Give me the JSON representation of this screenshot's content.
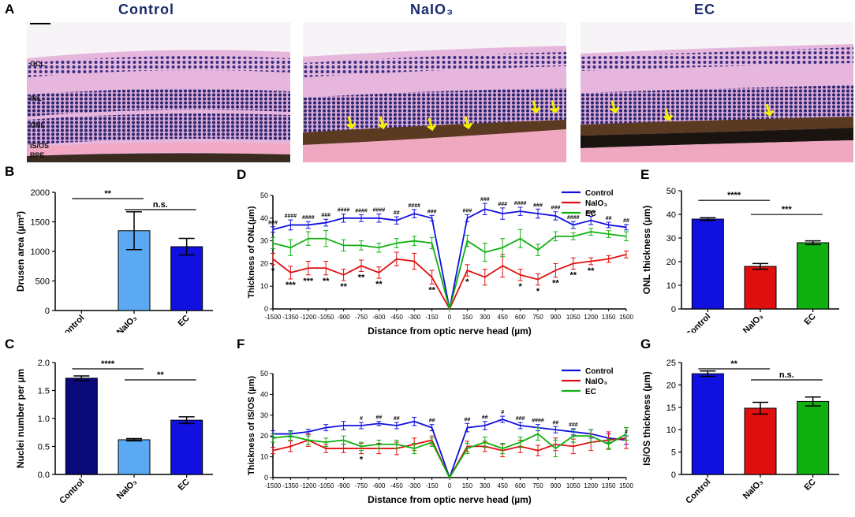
{
  "panel_letters": {
    "A": "A",
    "B": "B",
    "C": "C",
    "D": "D",
    "E": "E",
    "F": "F",
    "G": "G"
  },
  "panel_A": {
    "titles": [
      "Control",
      "NaIO₃",
      "EC"
    ],
    "layers": [
      "GCL",
      "INL",
      "ONL",
      "IS/OS",
      "RPE"
    ]
  },
  "colors": {
    "control": "#1010e0",
    "naio3": "#e01010",
    "ec": "#10b010",
    "control_dark": "#0a0a7a",
    "naio3_light": "#5aa9f2",
    "arrow": "#f5f000"
  },
  "chart_data": [
    {
      "id": "B",
      "type": "bar",
      "ylabel": "Drusen area (µm²)",
      "categories": [
        "Control",
        "NaIO₃",
        "EC"
      ],
      "values": [
        0,
        1350,
        1080
      ],
      "errors": [
        0,
        320,
        140
      ],
      "ylim": [
        0,
        2000
      ],
      "yticks": [
        0,
        500,
        1000,
        1500,
        2000
      ],
      "significance": [
        {
          "from": 0,
          "to": 1,
          "label": "**"
        },
        {
          "from": 1,
          "to": 2,
          "label": "n.s."
        }
      ]
    },
    {
      "id": "C",
      "type": "bar",
      "ylabel": "Nuclei number per µm",
      "categories": [
        "Control",
        "NaIO₃",
        "EC"
      ],
      "values": [
        1.72,
        0.62,
        0.97
      ],
      "errors": [
        0.04,
        0.02,
        0.06
      ],
      "ylim": [
        0,
        2.0
      ],
      "yticks": [
        "0.0",
        "0.5",
        "1.0",
        "1.5",
        "2.0"
      ],
      "significance": [
        {
          "from": 0,
          "to": 1,
          "label": "****"
        },
        {
          "from": 1,
          "to": 2,
          "label": "**"
        }
      ]
    },
    {
      "id": "D",
      "type": "line",
      "ylabel": "Thickness of ONL(µm)",
      "xlabel": "Distance from optic nerve head (µm)",
      "x": [
        -1500,
        -1350,
        -1200,
        -1050,
        -900,
        -750,
        -600,
        -450,
        -300,
        -150,
        0,
        150,
        300,
        450,
        600,
        750,
        900,
        1050,
        1200,
        1350,
        1500
      ],
      "ylim": [
        0,
        50
      ],
      "yticks": [
        0,
        10,
        20,
        30,
        40,
        50
      ],
      "series": [
        {
          "name": "Control",
          "values": [
            35,
            37,
            37,
            38,
            40,
            40,
            40,
            39,
            42,
            40,
            0,
            40,
            44,
            42,
            43,
            42,
            41,
            37,
            39,
            37,
            36
          ],
          "err": [
            1.2,
            2.2,
            1.5,
            1.5,
            1.8,
            1.5,
            1.8,
            1.6,
            1.8,
            1.2,
            0,
            1.5,
            2.5,
            2.5,
            1.8,
            2.0,
            1.8,
            1.5,
            1.8,
            1.2,
            1.2
          ]
        },
        {
          "name": "NaIO₃",
          "values": [
            22,
            16,
            18,
            18,
            15,
            19,
            16,
            22,
            21,
            14,
            0,
            17,
            14,
            19,
            15,
            13,
            17,
            20,
            21,
            22,
            24
          ],
          "err": [
            2.5,
            2.8,
            3.0,
            3.0,
            2.5,
            2.5,
            2.5,
            3.0,
            3.5,
            3.0,
            0,
            2.5,
            3.5,
            5,
            2.5,
            2.5,
            3.0,
            2.5,
            1.5,
            1.5,
            1.5
          ]
        },
        {
          "name": "EC",
          "values": [
            29,
            27,
            31,
            31,
            28,
            28,
            27,
            29,
            30,
            29,
            0,
            30,
            25,
            27,
            31,
            26,
            32,
            32,
            34,
            33,
            32
          ],
          "err": [
            2.5,
            3.5,
            3.0,
            3.5,
            2.5,
            2.0,
            2.0,
            2.0,
            2.0,
            2.5,
            0,
            2.5,
            4.0,
            4.0,
            4.0,
            2.5,
            2.0,
            1.5,
            1.5,
            1.5,
            2.0
          ]
        }
      ],
      "annotations_top": [
        "###",
        "####",
        "####",
        "###",
        "####",
        "####",
        "####",
        "##",
        "####",
        "###",
        "",
        "###",
        "###",
        "###",
        "####",
        "###",
        "###",
        "####",
        "###",
        "##",
        "##"
      ],
      "annotations_bottom": [
        "*",
        "***",
        "***",
        "**",
        "**",
        "**",
        "**",
        "",
        "",
        "**",
        "",
        "*",
        "",
        "",
        "*",
        "*",
        "**",
        "**",
        "**",
        "",
        ""
      ]
    },
    {
      "id": "E",
      "type": "bar",
      "ylabel": "ONL thickness (µm)",
      "categories": [
        "Control",
        "NaIO₃",
        "EC"
      ],
      "values": [
        38,
        18,
        28
      ],
      "errors": [
        0.6,
        1.2,
        0.8
      ],
      "ylim": [
        0,
        50
      ],
      "yticks": [
        0,
        10,
        20,
        30,
        40,
        50
      ],
      "significance": [
        {
          "from": 0,
          "to": 1,
          "label": "****"
        },
        {
          "from": 1,
          "to": 2,
          "label": "***"
        }
      ]
    },
    {
      "id": "F",
      "type": "line",
      "ylabel": "Thickness of IS/OS (µm)",
      "xlabel": "Distance from optic nerve head (µm)",
      "x": [
        -1500,
        -1350,
        -1200,
        -1050,
        -900,
        -750,
        -600,
        -450,
        -300,
        -150,
        0,
        150,
        300,
        450,
        600,
        750,
        900,
        1050,
        1200,
        1350,
        1500
      ],
      "ylim": [
        0,
        50
      ],
      "yticks": [
        0,
        10,
        20,
        30,
        40,
        50
      ],
      "series": [
        {
          "name": "Control",
          "values": [
            21,
            21,
            22,
            24,
            25,
            25,
            26,
            25,
            27,
            24,
            0,
            24,
            25,
            28,
            25,
            24,
            23,
            22,
            21,
            19,
            18
          ],
          "err": [
            1.5,
            1.5,
            1.2,
            1.5,
            2.0,
            1.5,
            1.0,
            1.5,
            2.0,
            1.5,
            0,
            2.0,
            2.0,
            1.5,
            1.5,
            1.5,
            1.5,
            1.5,
            2.0,
            2.0,
            2.0
          ]
        },
        {
          "name": "NaIO₃",
          "values": [
            13,
            15,
            18,
            14,
            14,
            14,
            14,
            14,
            16,
            18,
            0,
            15,
            15,
            13,
            15,
            13,
            16,
            15,
            17,
            18,
            19
          ],
          "err": [
            1.5,
            2.5,
            3.0,
            2.0,
            2.0,
            2.5,
            2.5,
            3.0,
            3.0,
            2.0,
            0,
            2.5,
            2.5,
            3.0,
            3.0,
            2.5,
            3.0,
            3.5,
            4.0,
            4.0,
            5.0
          ]
        },
        {
          "name": "EC",
          "values": [
            19,
            20,
            18,
            17,
            18,
            15,
            16,
            16,
            14,
            17,
            0,
            14,
            17,
            14,
            17,
            21,
            14,
            20,
            20,
            16,
            21
          ],
          "err": [
            2.0,
            2.0,
            2.0,
            2.0,
            2.0,
            2.0,
            2.0,
            2.0,
            2.5,
            2.0,
            0,
            2.5,
            2.5,
            2.5,
            2.5,
            3.0,
            4.0,
            3.0,
            3.0,
            2.5,
            3.0
          ]
        }
      ],
      "annotations_top": [
        "",
        "",
        "",
        "",
        "",
        "#",
        "##",
        "##",
        "",
        "##",
        "",
        "##",
        "##",
        "#",
        "###",
        "####",
        "##",
        "###",
        "",
        "",
        "#"
      ],
      "annotations_bottom": [
        "",
        "",
        "",
        "",
        "",
        "*",
        "",
        "",
        "",
        "",
        "",
        "",
        "",
        "",
        "",
        "",
        "",
        "",
        "",
        "",
        ""
      ]
    },
    {
      "id": "G",
      "type": "bar",
      "ylabel": "IS/OS thickness (µm)",
      "categories": [
        "Control",
        "NaIO₃",
        "EC"
      ],
      "values": [
        22.5,
        14.8,
        16.3
      ],
      "errors": [
        0.6,
        1.3,
        1.0
      ],
      "ylim": [
        0,
        25
      ],
      "yticks": [
        0,
        5,
        10,
        15,
        20,
        25
      ],
      "significance": [
        {
          "from": 0,
          "to": 1,
          "label": "**"
        },
        {
          "from": 1,
          "to": 2,
          "label": "n.s."
        }
      ]
    }
  ]
}
